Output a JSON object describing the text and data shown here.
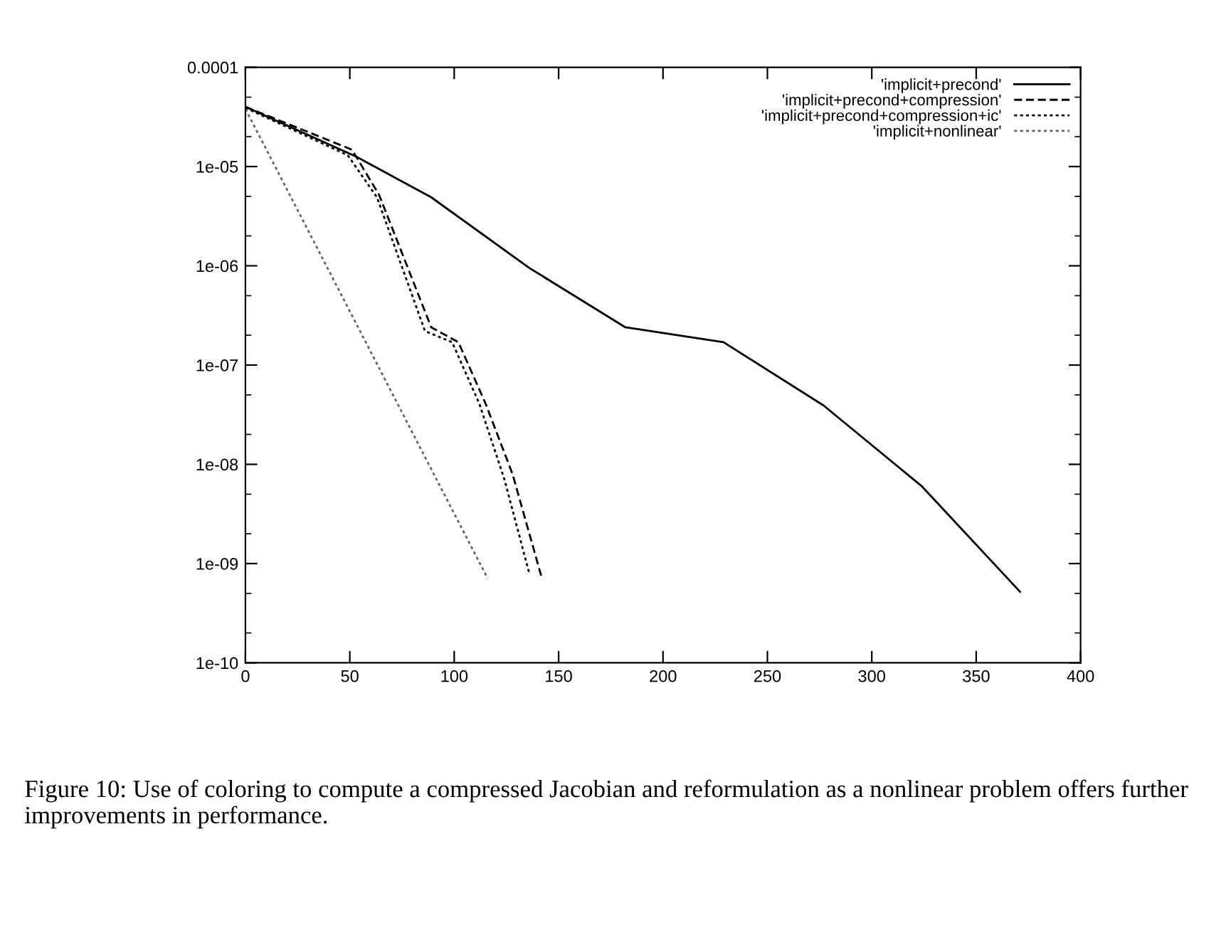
{
  "chart_data": {
    "type": "line",
    "log": "y",
    "xlim": [
      0,
      400
    ],
    "xticks": [
      0,
      50,
      100,
      150,
      200,
      250,
      300,
      350,
      400
    ],
    "ylim": [
      1e-10,
      0.0001
    ],
    "yticks": [
      {
        "value": 1e-10,
        "label": "1e-10"
      },
      {
        "value": 1e-09,
        "label": "1e-09"
      },
      {
        "value": 1e-08,
        "label": "1e-08"
      },
      {
        "value": 1e-07,
        "label": "1e-07"
      },
      {
        "value": 1e-06,
        "label": "1e-06"
      },
      {
        "value": 1e-05,
        "label": "1e-05"
      },
      {
        "value": 0.0001,
        "label": "0.0001"
      }
    ],
    "grid": false,
    "legend": "top right",
    "series": [
      {
        "name": "'implicit+precond'",
        "color": "#000000",
        "line_style": "solid",
        "x": [
          0,
          53,
          89,
          136,
          182,
          229,
          277,
          324,
          371
        ],
        "values": [
          4e-05,
          1.26e-05,
          4.9e-06,
          9.5e-07,
          2.4e-07,
          1.7e-07,
          3.9e-08,
          6e-09,
          5.2e-10
        ]
      },
      {
        "name": "'implicit+precond+compression'",
        "color": "#000000",
        "line_style": "dashed",
        "x": [
          0,
          51,
          64,
          89,
          102,
          115,
          128,
          142
        ],
        "values": [
          4e-05,
          1.48e-05,
          5.2e-06,
          2.4e-07,
          1.7e-07,
          4.1e-08,
          7.9e-09,
          7.1e-10
        ]
      },
      {
        "name": "'implicit+precond+compression+ic'",
        "color": "#000000",
        "line_style": "dotted",
        "x": [
          0,
          49,
          63,
          86,
          99,
          112,
          124,
          136
        ],
        "values": [
          3.9e-05,
          1.3e-05,
          4.9e-06,
          2.2e-07,
          1.7e-07,
          4.1e-08,
          7.1e-09,
          7.9e-10
        ]
      },
      {
        "name": "'implicit+nonlinear'",
        "color": "#666666",
        "line_style": "dotted",
        "x": [
          0,
          116
        ],
        "values": [
          3.8e-05,
          7.1e-10
        ]
      }
    ],
    "annotations": [
      "Figure 10: Use of coloring to compute a compressed Jacobian and reformulation as a nonlinear problem offers further improvements in performance."
    ]
  }
}
